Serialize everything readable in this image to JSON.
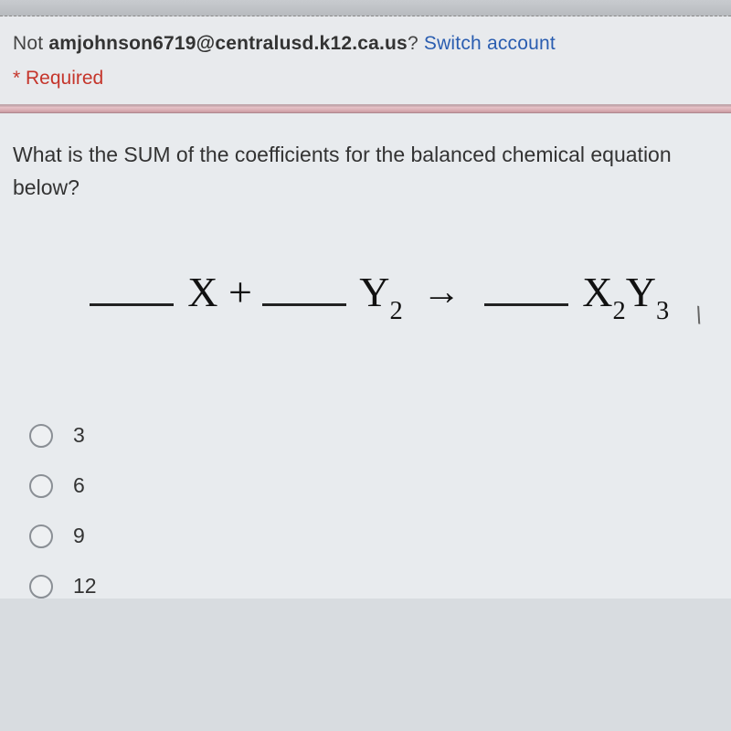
{
  "header": {
    "not_prefix": "Not ",
    "email": "amjohnson6719@centralusd.k12.ca.us",
    "question_mark": "? ",
    "switch_account": "Switch account",
    "required": "* Required"
  },
  "question": {
    "text": "What is the SUM of the coefficients for the balanced chemical equation below?"
  },
  "equation": {
    "term1_var": "X",
    "plus": " + ",
    "term2_var": "Y",
    "term2_sub": "2",
    "arrow": "→",
    "term3_var1": "X",
    "term3_sub1": "2",
    "term3_var2": "Y",
    "term3_sub2": "3"
  },
  "options": [
    {
      "label": "3"
    },
    {
      "label": "6"
    },
    {
      "label": "9"
    },
    {
      "label": "12"
    }
  ],
  "colors": {
    "link": "#2a5db0",
    "required": "#c5352b",
    "card_bg": "#e8ebee",
    "divider": "#d9aeb4"
  }
}
